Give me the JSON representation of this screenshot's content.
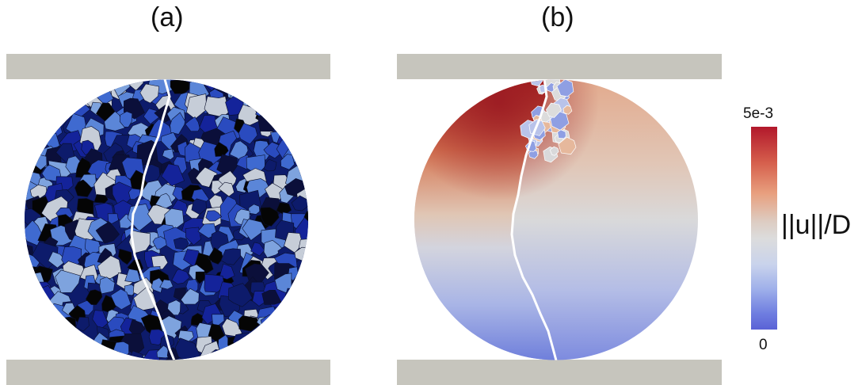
{
  "panels": {
    "a": {
      "label": "(a)"
    },
    "b": {
      "label": "(b)"
    }
  },
  "colorbar": {
    "title": "||u||/D",
    "max_label": "5e-3",
    "min_label": "0",
    "colors": [
      "#b2182b",
      "#d6604d",
      "#e8a07f",
      "#dcdcdc",
      "#9fb0ea",
      "#5a62d6"
    ]
  },
  "colors": {
    "plate": "#c6c5bd",
    "grain_palette": [
      "#0b0f3a",
      "#0d1b6b",
      "#14239a",
      "#2a4bbf",
      "#3f6ad0",
      "#5b86d8",
      "#7ea3de",
      "#c6cdd8",
      "#050505"
    ]
  }
}
